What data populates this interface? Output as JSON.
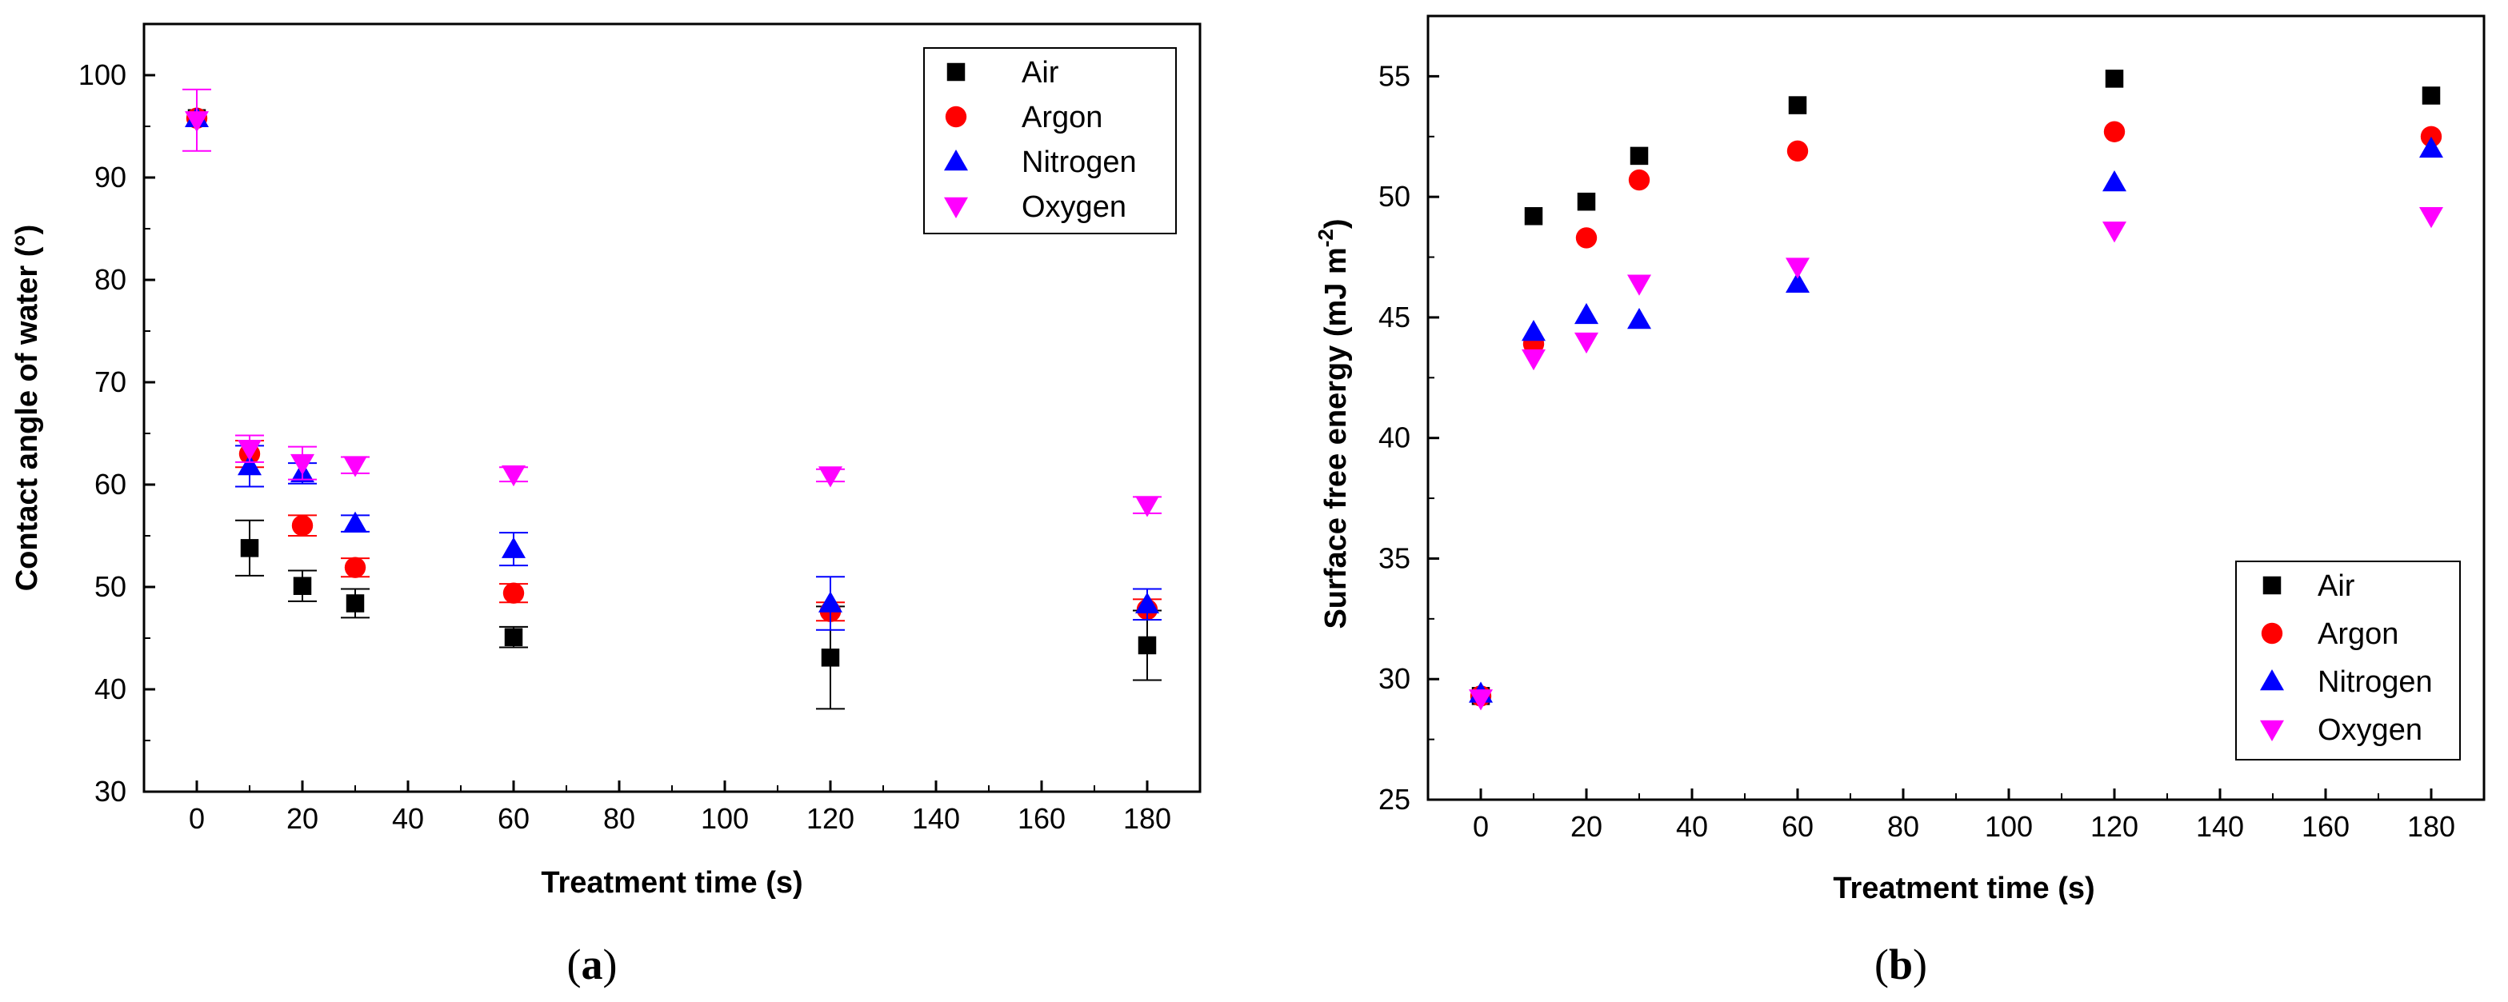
{
  "chart_data": [
    {
      "type": "scatter",
      "panel_label": {
        "open": "(",
        "letter": "a",
        "close": ")"
      },
      "title": "",
      "xlabel": "Treatment time (s)",
      "ylabel": "Contact angle of water (°)",
      "xlim": [
        -10,
        190
      ],
      "ylim": [
        30,
        105
      ],
      "xticks": [
        0,
        20,
        40,
        60,
        80,
        100,
        120,
        140,
        160,
        180
      ],
      "yticks": [
        30,
        40,
        50,
        60,
        70,
        80,
        90,
        100
      ],
      "legend_position": "top-right",
      "series": [
        {
          "name": "Air",
          "marker": "square",
          "color": "#000000",
          "x": [
            0,
            10,
            20,
            30,
            60,
            120,
            180
          ],
          "y": [
            95.8,
            53.8,
            50.1,
            48.4,
            45.1,
            43.1,
            44.3
          ],
          "err": [
            0,
            2.7,
            1.5,
            1.4,
            1.0,
            5.0,
            3.4
          ]
        },
        {
          "name": "Argon",
          "marker": "circle",
          "color": "#ff0000",
          "x": [
            0,
            10,
            20,
            30,
            60,
            120,
            180
          ],
          "y": [
            95.8,
            63.0,
            56.0,
            51.9,
            49.4,
            47.6,
            47.8
          ],
          "err": [
            0,
            1.3,
            1.0,
            0.9,
            0.9,
            0.9,
            1.0
          ]
        },
        {
          "name": "Nitrogen",
          "marker": "triangle-up",
          "color": "#0000ff",
          "x": [
            0,
            10,
            20,
            30,
            60,
            120,
            180
          ],
          "y": [
            95.8,
            61.8,
            61.1,
            56.2,
            53.7,
            48.4,
            48.3
          ],
          "err": [
            0,
            2.0,
            1.0,
            0.8,
            1.6,
            2.6,
            1.5
          ]
        },
        {
          "name": "Oxygen",
          "marker": "triangle-down",
          "color": "#ff00ff",
          "x": [
            0,
            10,
            20,
            30,
            60,
            120,
            180
          ],
          "y": [
            95.6,
            63.5,
            62.1,
            61.9,
            61.0,
            60.9,
            58.0
          ],
          "err": [
            3.0,
            1.3,
            1.6,
            0.8,
            0.7,
            0.6,
            0.8
          ]
        }
      ]
    },
    {
      "type": "scatter",
      "panel_label": {
        "open": "(",
        "letter": "b",
        "close": ")"
      },
      "title": "",
      "xlabel": "Treatment time (s)",
      "ylabel": "Surface free energy (mJ m",
      "ylabel_superscript": "-2",
      "ylabel_suffix": ")",
      "xlim": [
        -10,
        190
      ],
      "ylim": [
        25,
        57.5
      ],
      "xticks": [
        0,
        20,
        40,
        60,
        80,
        100,
        120,
        140,
        160,
        180
      ],
      "yticks": [
        25,
        30,
        35,
        40,
        45,
        50,
        55
      ],
      "legend_position": "bottom-right",
      "series": [
        {
          "name": "Air",
          "marker": "square",
          "color": "#000000",
          "x": [
            0,
            10,
            20,
            30,
            60,
            120,
            180
          ],
          "y": [
            29.3,
            49.2,
            49.8,
            51.7,
            53.8,
            54.9,
            54.2
          ]
        },
        {
          "name": "Argon",
          "marker": "circle",
          "color": "#ff0000",
          "x": [
            0,
            10,
            20,
            30,
            60,
            120,
            180
          ],
          "y": [
            29.3,
            43.9,
            48.3,
            50.7,
            51.9,
            52.7,
            52.5
          ]
        },
        {
          "name": "Nitrogen",
          "marker": "triangle-up",
          "color": "#0000ff",
          "x": [
            0,
            10,
            20,
            30,
            60,
            120,
            180
          ],
          "y": [
            29.4,
            44.4,
            45.1,
            44.9,
            46.4,
            50.6,
            52.0
          ]
        },
        {
          "name": "Oxygen",
          "marker": "triangle-down",
          "color": "#ff00ff",
          "x": [
            0,
            10,
            20,
            30,
            60,
            120,
            180
          ],
          "y": [
            29.2,
            43.3,
            44.0,
            46.4,
            47.1,
            48.6,
            49.2
          ]
        }
      ]
    }
  ]
}
